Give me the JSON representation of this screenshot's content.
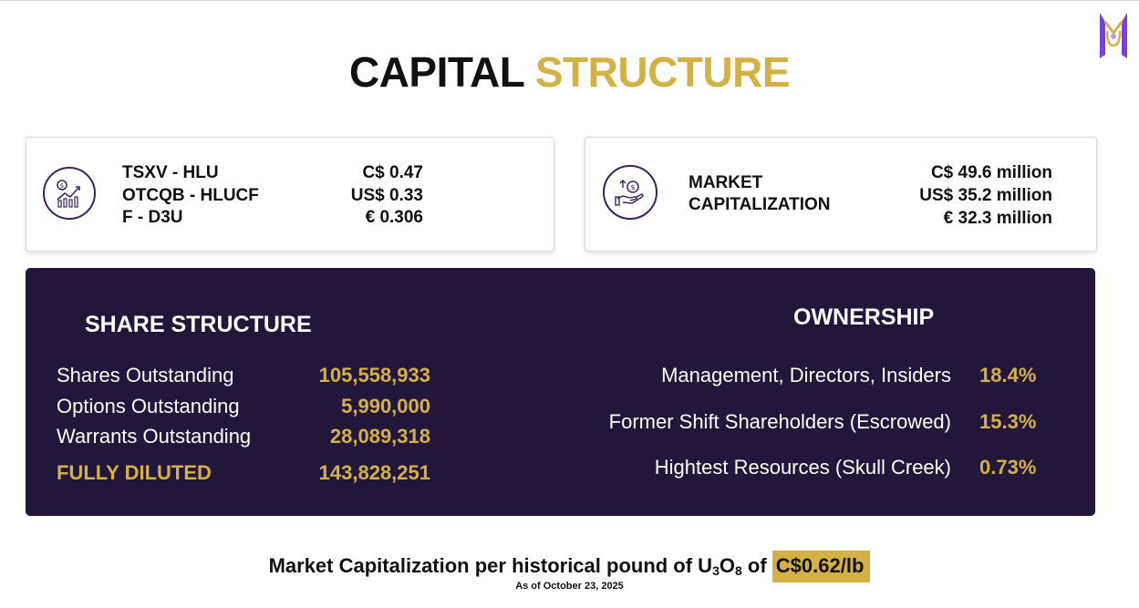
{
  "page_title": {
    "part1": "CAPITAL",
    "part2": "STRUCTURE"
  },
  "colors": {
    "gold": "#d4b144",
    "dark_panel": "#22173a",
    "logo_purple": "#7b3fe4"
  },
  "tickers": [
    {
      "name": "TSXV - HLU",
      "price": "C$ 0.47"
    },
    {
      "name": "OTCQB - HLUCF",
      "price": "US$ 0.33"
    },
    {
      "name": "F - D3U",
      "price": "€ 0.306"
    }
  ],
  "market_cap": {
    "label_line1": "MARKET",
    "label_line2": "CAPITALIZATION",
    "values": [
      "C$ 49.6 million",
      "US$ 35.2 million",
      "€ 32.3 million"
    ]
  },
  "share_structure": {
    "title": "SHARE STRUCTURE",
    "rows": [
      {
        "label": "Shares Outstanding",
        "value": "105,558,933"
      },
      {
        "label": "Options Outstanding",
        "value": "5,990,000"
      },
      {
        "label": "Warrants Outstanding",
        "value": "28,089,318"
      },
      {
        "label": "FULLY DILUTED",
        "value": "143,828,251"
      }
    ]
  },
  "ownership": {
    "title": "OWNERSHIP",
    "rows": [
      {
        "label": "Management, Directors, Insiders",
        "value": "18.4%"
      },
      {
        "label": "Former Shift Shareholders (Escrowed)",
        "value": "15.3%"
      },
      {
        "label": "Hightest Resources (Skull Creek)",
        "value": "0.73%"
      }
    ]
  },
  "footer": {
    "text_before": "Market Capitalization per historical pound of U",
    "sub1": "3",
    "text_mid": "O",
    "sub2": "8",
    "text_after": " of ",
    "highlight": "C$0.62/lb",
    "date": "As of October 23, 2025"
  },
  "icons": {
    "logo": "company-logo-icon",
    "left_card": "growth-chart-icon",
    "right_card": "hand-money-icon"
  }
}
